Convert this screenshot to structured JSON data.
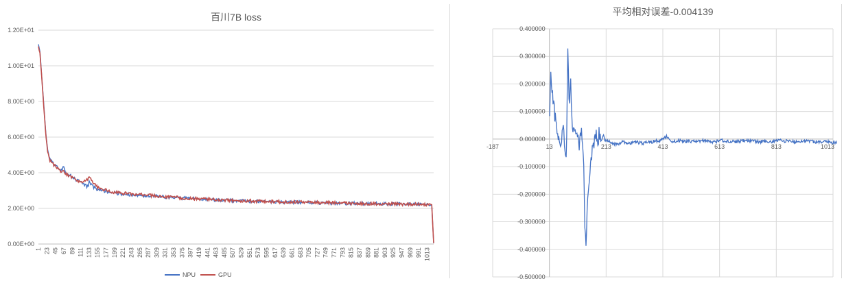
{
  "chart_data": [
    {
      "type": "line",
      "title": "百川7B loss",
      "xlabel": "",
      "ylabel": "",
      "ylim": [
        0,
        12
      ],
      "xlim": [
        1,
        1030
      ],
      "yticks": [
        "0.00E+00",
        "2.00E+00",
        "4.00E+00",
        "6.00E+00",
        "8.00E+00",
        "1.00E+01",
        "1.20E+01"
      ],
      "yticks_values": [
        0,
        2,
        4,
        6,
        8,
        10,
        12
      ],
      "xticks": [
        "1",
        "23",
        "45",
        "67",
        "89",
        "111",
        "133",
        "155",
        "177",
        "199",
        "221",
        "243",
        "265",
        "287",
        "309",
        "331",
        "353",
        "375",
        "397",
        "419",
        "441",
        "463",
        "485",
        "507",
        "529",
        "551",
        "573",
        "595",
        "617",
        "639",
        "661",
        "683",
        "705",
        "727",
        "749",
        "771",
        "793",
        "815",
        "837",
        "859",
        "881",
        "903",
        "925",
        "947",
        "969",
        "991",
        "1013"
      ],
      "grid": true,
      "legend": "bottom",
      "series": [
        {
          "name": "NPU",
          "color": "#4472c4",
          "x": [
            1,
            5,
            10,
            15,
            20,
            25,
            30,
            40,
            50,
            60,
            67,
            70,
            80,
            90,
            100,
            110,
            120,
            130,
            133,
            140,
            150,
            160,
            180,
            200,
            250,
            300,
            350,
            400,
            450,
            500,
            550,
            600,
            650,
            700,
            750,
            800,
            850,
            900,
            950,
            1000,
            1020,
            1025,
            1030
          ],
          "y": [
            11.2,
            10.8,
            9.3,
            7.8,
            6.3,
            5.3,
            4.8,
            4.5,
            4.3,
            4.1,
            4.4,
            4.0,
            3.9,
            3.75,
            3.6,
            3.45,
            3.35,
            3.2,
            3.5,
            3.3,
            3.1,
            3.0,
            2.95,
            2.85,
            2.75,
            2.7,
            2.6,
            2.55,
            2.5,
            2.45,
            2.4,
            2.38,
            2.35,
            2.33,
            2.3,
            2.28,
            2.27,
            2.25,
            2.24,
            2.22,
            2.2,
            2.2,
            0.05
          ]
        },
        {
          "name": "GPU",
          "color": "#c0504d",
          "x": [
            1,
            5,
            10,
            15,
            20,
            25,
            30,
            40,
            50,
            60,
            67,
            70,
            80,
            90,
            100,
            110,
            120,
            130,
            133,
            140,
            150,
            160,
            180,
            200,
            250,
            300,
            350,
            400,
            450,
            500,
            550,
            600,
            650,
            700,
            750,
            800,
            850,
            900,
            950,
            1000,
            1020,
            1025,
            1030
          ],
          "y": [
            11.1,
            10.7,
            9.2,
            7.7,
            6.2,
            5.2,
            4.75,
            4.45,
            4.25,
            4.05,
            4.1,
            3.95,
            3.85,
            3.7,
            3.55,
            3.45,
            3.5,
            3.6,
            3.85,
            3.5,
            3.3,
            3.1,
            3.0,
            2.9,
            2.78,
            2.72,
            2.62,
            2.56,
            2.5,
            2.45,
            2.42,
            2.38,
            2.36,
            2.34,
            2.31,
            2.29,
            2.27,
            2.26,
            2.24,
            2.23,
            2.21,
            2.2,
            0.05
          ]
        }
      ]
    },
    {
      "type": "line",
      "title": "平均相对误差-0.004139",
      "xlabel": "",
      "ylabel": "",
      "ylim": [
        -0.5,
        0.4
      ],
      "xlim": [
        -187,
        1013
      ],
      "yticks": [
        "-0.500000",
        "-0.400000",
        "-0.300000",
        "-0.200000",
        "-0.100000",
        "0.000000",
        "0.100000",
        "0.200000",
        "0.300000",
        "0.400000"
      ],
      "yticks_values": [
        -0.5,
        -0.4,
        -0.3,
        -0.2,
        -0.1,
        0,
        0.1,
        0.2,
        0.3,
        0.4
      ],
      "xticks": [
        "-187",
        "13",
        "213",
        "413",
        "613",
        "813",
        "1013"
      ],
      "xticks_values": [
        -187,
        13,
        213,
        413,
        613,
        813,
        1013
      ],
      "grid": true,
      "legend": "none",
      "series": [
        {
          "name": "",
          "color": "#4472c4",
          "x": [
            1,
            5,
            10,
            15,
            20,
            25,
            30,
            40,
            50,
            55,
            60,
            65,
            70,
            75,
            80,
            85,
            90,
            95,
            100,
            105,
            110,
            115,
            120,
            125,
            130,
            135,
            140,
            145,
            150,
            155,
            160,
            165,
            170,
            175,
            180,
            185,
            190,
            195,
            200,
            210,
            220,
            240,
            260,
            280,
            300,
            330,
            360,
            390,
            413,
            430,
            460,
            500,
            540,
            580,
            613,
            650,
            700,
            750,
            800,
            813,
            850,
            900,
            950,
            1013
          ],
          "y": [
            0.1,
            0.24,
            0.18,
            0.12,
            0.08,
            0.05,
            0.02,
            -0.02,
            0.04,
            -0.06,
            -0.09,
            0.33,
            0.1,
            0.23,
            0.05,
            0.02,
            0.06,
            0.03,
            0.01,
            -0.02,
            0.04,
            0.0,
            -0.07,
            -0.3,
            -0.39,
            -0.2,
            -0.15,
            -0.08,
            -0.05,
            -0.03,
            0.0,
            0.01,
            -0.02,
            0.02,
            -0.01,
            0.0,
            0.02,
            -0.01,
            0.0,
            -0.01,
            -0.015,
            -0.02,
            -0.01,
            -0.015,
            -0.01,
            -0.015,
            -0.01,
            -0.005,
            0.01,
            -0.01,
            -0.005,
            -0.01,
            -0.005,
            -0.01,
            -0.005,
            -0.01,
            -0.005,
            -0.01,
            -0.008,
            -0.005,
            -0.01,
            -0.008,
            -0.01,
            -0.012
          ]
        }
      ]
    }
  ]
}
